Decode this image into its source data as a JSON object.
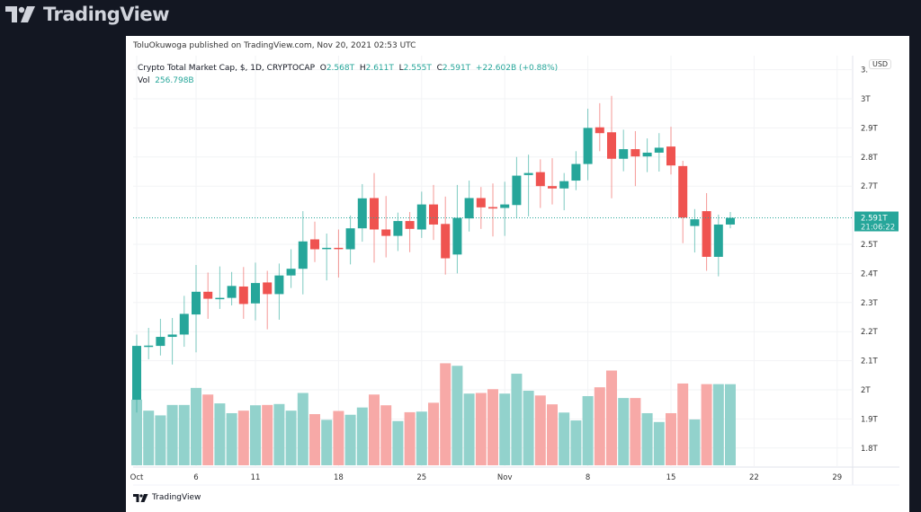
{
  "brand": {
    "name": "TradingView"
  },
  "header": {
    "published": "ToluOkuwoga published on TradingView.com, Nov 20, 2021 02:53 UTC"
  },
  "legend": {
    "symbol": "Crypto Total Market Cap, $, 1D, CRYPTOCAP",
    "o_label": "O",
    "o": "2.568T",
    "h_label": "H",
    "h": "2.611T",
    "l_label": "L",
    "l": "2.555T",
    "c_label": "C",
    "c": "2.591T",
    "change": "+22.602B (+0.88%)",
    "vol_label": "Vol",
    "vol": "256.798B"
  },
  "currency_button": "USD",
  "last_price": {
    "price": "2.591T",
    "countdown": "21:06:22"
  },
  "footer": {
    "brand": "TradingView"
  },
  "colors": {
    "up": "#26a69a",
    "down": "#ef5350",
    "up_vol": "#92d2cc",
    "down_vol": "#f7a9a7",
    "background": "#131722"
  },
  "chart_data": {
    "type": "candlestick",
    "price_ticks": [
      "3.",
      "3T",
      "2.9T",
      "2.8T",
      "2.7T",
      "2.5T",
      "2.4T",
      "2.3T",
      "2.2T",
      "2.1T",
      "2T",
      "1.9T",
      "1.8T"
    ],
    "price_tick_values": [
      3.1,
      3.0,
      2.9,
      2.8,
      2.7,
      2.5,
      2.4,
      2.3,
      2.2,
      2.1,
      2.0,
      1.9,
      1.8
    ],
    "time_ticks": [
      {
        "label": "Oct",
        "date": "2021-10-01"
      },
      {
        "label": "6",
        "date": "2021-10-06"
      },
      {
        "label": "11",
        "date": "2021-10-11"
      },
      {
        "label": "18",
        "date": "2021-10-18"
      },
      {
        "label": "25",
        "date": "2021-10-25"
      },
      {
        "label": "Nov",
        "date": "2021-11-01"
      },
      {
        "label": "8",
        "date": "2021-11-08"
      },
      {
        "label": "15",
        "date": "2021-11-15"
      },
      {
        "label": "22",
        "date": "2021-11-22"
      },
      {
        "label": "29",
        "date": "2021-11-29"
      }
    ],
    "price_unit": "T USD",
    "volume_unit": "B USD",
    "candles": [
      [
        "2021-10-01",
        1.966,
        2.19,
        1.922,
        2.151,
        208
      ],
      [
        "2021-10-02",
        2.148,
        2.213,
        2.105,
        2.152,
        173
      ],
      [
        "2021-10-03",
        2.151,
        2.244,
        2.118,
        2.182,
        158
      ],
      [
        "2021-10-04",
        2.182,
        2.247,
        2.087,
        2.19,
        191
      ],
      [
        "2021-10-05",
        2.19,
        2.323,
        2.148,
        2.261,
        191
      ],
      [
        "2021-10-06",
        2.259,
        2.429,
        2.129,
        2.337,
        245
      ],
      [
        "2021-10-07",
        2.337,
        2.403,
        2.244,
        2.313,
        224
      ],
      [
        "2021-10-08",
        2.313,
        2.424,
        2.278,
        2.316,
        196
      ],
      [
        "2021-10-09",
        2.316,
        2.405,
        2.29,
        2.357,
        165
      ],
      [
        "2021-10-10",
        2.355,
        2.422,
        2.244,
        2.295,
        173
      ],
      [
        "2021-10-11",
        2.297,
        2.437,
        2.239,
        2.367,
        190
      ],
      [
        "2021-10-12",
        2.369,
        2.409,
        2.208,
        2.329,
        191
      ],
      [
        "2021-10-13",
        2.329,
        2.434,
        2.241,
        2.393,
        194
      ],
      [
        "2021-10-14",
        2.393,
        2.483,
        2.35,
        2.416,
        173
      ],
      [
        "2021-10-15",
        2.416,
        2.614,
        2.328,
        2.51,
        229
      ],
      [
        "2021-10-16",
        2.517,
        2.578,
        2.439,
        2.483,
        162
      ],
      [
        "2021-10-17",
        2.484,
        2.537,
        2.376,
        2.488,
        144
      ],
      [
        "2021-10-18",
        2.488,
        2.551,
        2.386,
        2.484,
        172
      ],
      [
        "2021-10-19",
        2.483,
        2.599,
        2.431,
        2.555,
        160
      ],
      [
        "2021-10-20",
        2.555,
        2.707,
        2.509,
        2.658,
        183
      ],
      [
        "2021-10-21",
        2.659,
        2.745,
        2.437,
        2.551,
        224
      ],
      [
        "2021-10-22",
        2.551,
        2.666,
        2.455,
        2.529,
        190
      ],
      [
        "2021-10-23",
        2.529,
        2.609,
        2.477,
        2.58,
        140
      ],
      [
        "2021-10-24",
        2.58,
        2.611,
        2.473,
        2.553,
        168
      ],
      [
        "2021-10-25",
        2.551,
        2.681,
        2.522,
        2.637,
        170
      ],
      [
        "2021-10-26",
        2.637,
        2.704,
        2.515,
        2.568,
        198
      ],
      [
        "2021-10-27",
        2.57,
        2.664,
        2.396,
        2.452,
        323
      ],
      [
        "2021-10-28",
        2.465,
        2.704,
        2.4,
        2.591,
        315
      ],
      [
        "2021-10-29",
        2.589,
        2.719,
        2.544,
        2.659,
        227
      ],
      [
        "2021-10-30",
        2.659,
        2.697,
        2.553,
        2.627,
        229
      ],
      [
        "2021-10-31",
        2.628,
        2.709,
        2.527,
        2.623,
        241
      ],
      [
        "2021-11-01",
        2.625,
        2.715,
        2.529,
        2.637,
        227
      ],
      [
        "2021-11-02",
        2.635,
        2.8,
        2.589,
        2.736,
        290
      ],
      [
        "2021-11-03",
        2.738,
        2.808,
        2.596,
        2.745,
        236
      ],
      [
        "2021-11-04",
        2.748,
        2.792,
        2.625,
        2.7,
        221
      ],
      [
        "2021-11-05",
        2.7,
        2.796,
        2.637,
        2.692,
        193
      ],
      [
        "2021-11-06",
        2.692,
        2.745,
        2.617,
        2.717,
        167
      ],
      [
        "2021-11-07",
        2.719,
        2.82,
        2.686,
        2.776,
        142
      ],
      [
        "2021-11-08",
        2.776,
        2.966,
        2.72,
        2.9,
        219
      ],
      [
        "2021-11-09",
        2.902,
        2.985,
        2.82,
        2.882,
        247
      ],
      [
        "2021-11-10",
        2.885,
        3.01,
        2.658,
        2.794,
        300
      ],
      [
        "2021-11-11",
        2.794,
        2.894,
        2.751,
        2.827,
        213
      ],
      [
        "2021-11-12",
        2.827,
        2.889,
        2.7,
        2.802,
        213
      ],
      [
        "2021-11-13",
        2.802,
        2.864,
        2.748,
        2.815,
        165
      ],
      [
        "2021-11-14",
        2.815,
        2.882,
        2.75,
        2.832,
        137
      ],
      [
        "2021-11-15",
        2.836,
        2.904,
        2.74,
        2.771,
        165
      ],
      [
        "2021-11-16",
        2.769,
        2.787,
        2.504,
        2.592,
        259
      ],
      [
        "2021-11-17",
        2.563,
        2.621,
        2.472,
        2.586,
        145
      ],
      [
        "2021-11-18",
        2.614,
        2.676,
        2.409,
        2.457,
        257
      ],
      [
        "2021-11-19",
        2.457,
        2.602,
        2.39,
        2.568,
        257
      ],
      [
        "2021-11-20",
        2.568,
        2.611,
        2.555,
        2.591,
        256.798
      ]
    ],
    "candle_fields": [
      "date",
      "open",
      "high",
      "low",
      "close",
      "volume"
    ],
    "grid": true
  }
}
